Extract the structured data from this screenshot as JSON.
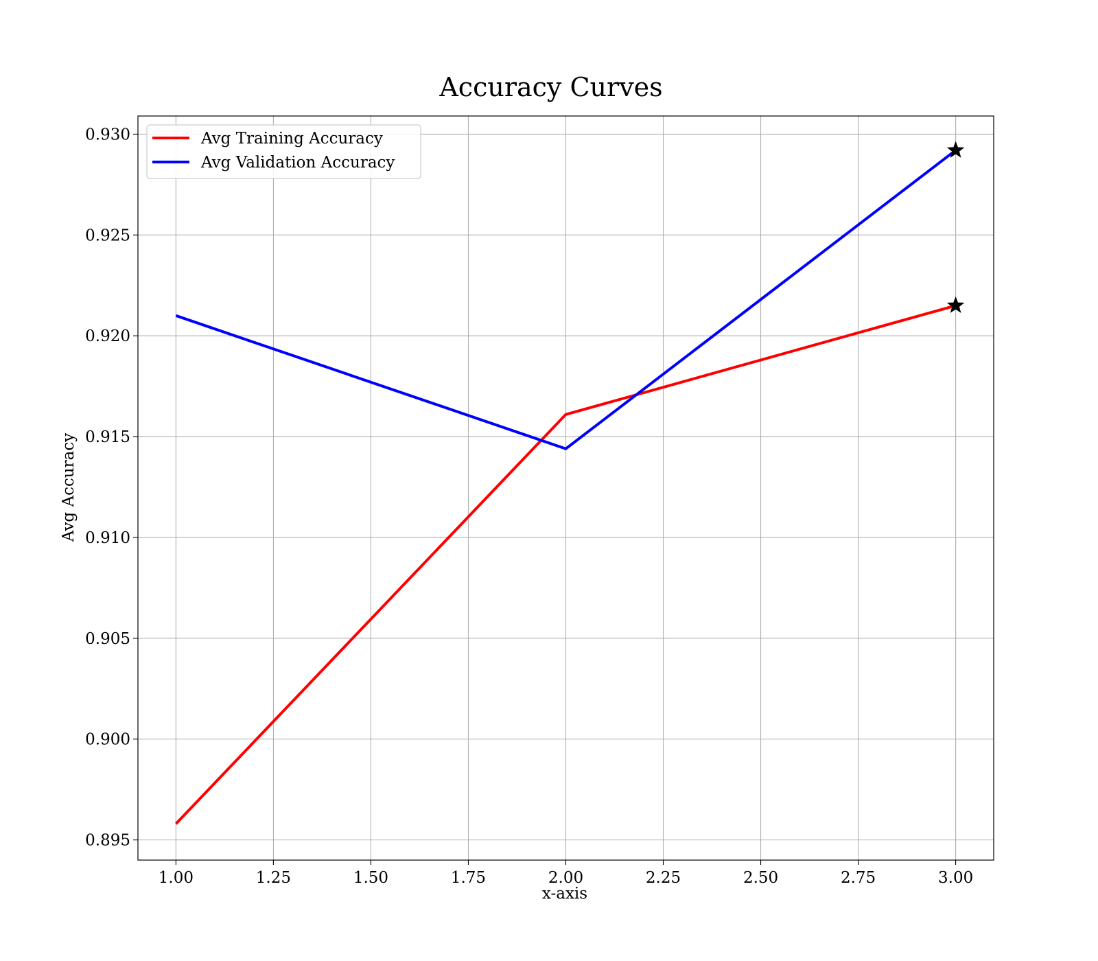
{
  "chart_data": {
    "type": "line",
    "title": "Accuracy Curves",
    "xlabel": "x-axis",
    "ylabel": "Avg Accuracy",
    "x": [
      1.0,
      2.0,
      3.0
    ],
    "xlim": [
      0.9025,
      3.0975
    ],
    "ylim": [
      0.894,
      0.9309
    ],
    "xticks": [
      1.0,
      1.25,
      1.5,
      1.75,
      2.0,
      2.25,
      2.5,
      2.75,
      3.0
    ],
    "xtick_labels": [
      "1.00",
      "1.25",
      "1.50",
      "1.75",
      "2.00",
      "2.25",
      "2.50",
      "2.75",
      "3.00"
    ],
    "yticks": [
      0.895,
      0.9,
      0.905,
      0.91,
      0.915,
      0.92,
      0.925,
      0.93
    ],
    "ytick_labels": [
      "0.895",
      "0.900",
      "0.905",
      "0.910",
      "0.915",
      "0.920",
      "0.925",
      "0.930"
    ],
    "grid": true,
    "legend_position": "top-left",
    "series": [
      {
        "name": "Avg Training Accuracy",
        "color": "#ff0000",
        "values": [
          0.8958,
          0.9161,
          0.9215
        ],
        "best_marker": {
          "x": 3.0,
          "y": 0.9215,
          "shape": "star",
          "color": "#000000"
        }
      },
      {
        "name": "Avg Validation Accuracy",
        "color": "#0000ff",
        "values": [
          0.921,
          0.9144,
          0.9292
        ],
        "best_marker": {
          "x": 3.0,
          "y": 0.9292,
          "shape": "star",
          "color": "#000000"
        }
      }
    ]
  }
}
